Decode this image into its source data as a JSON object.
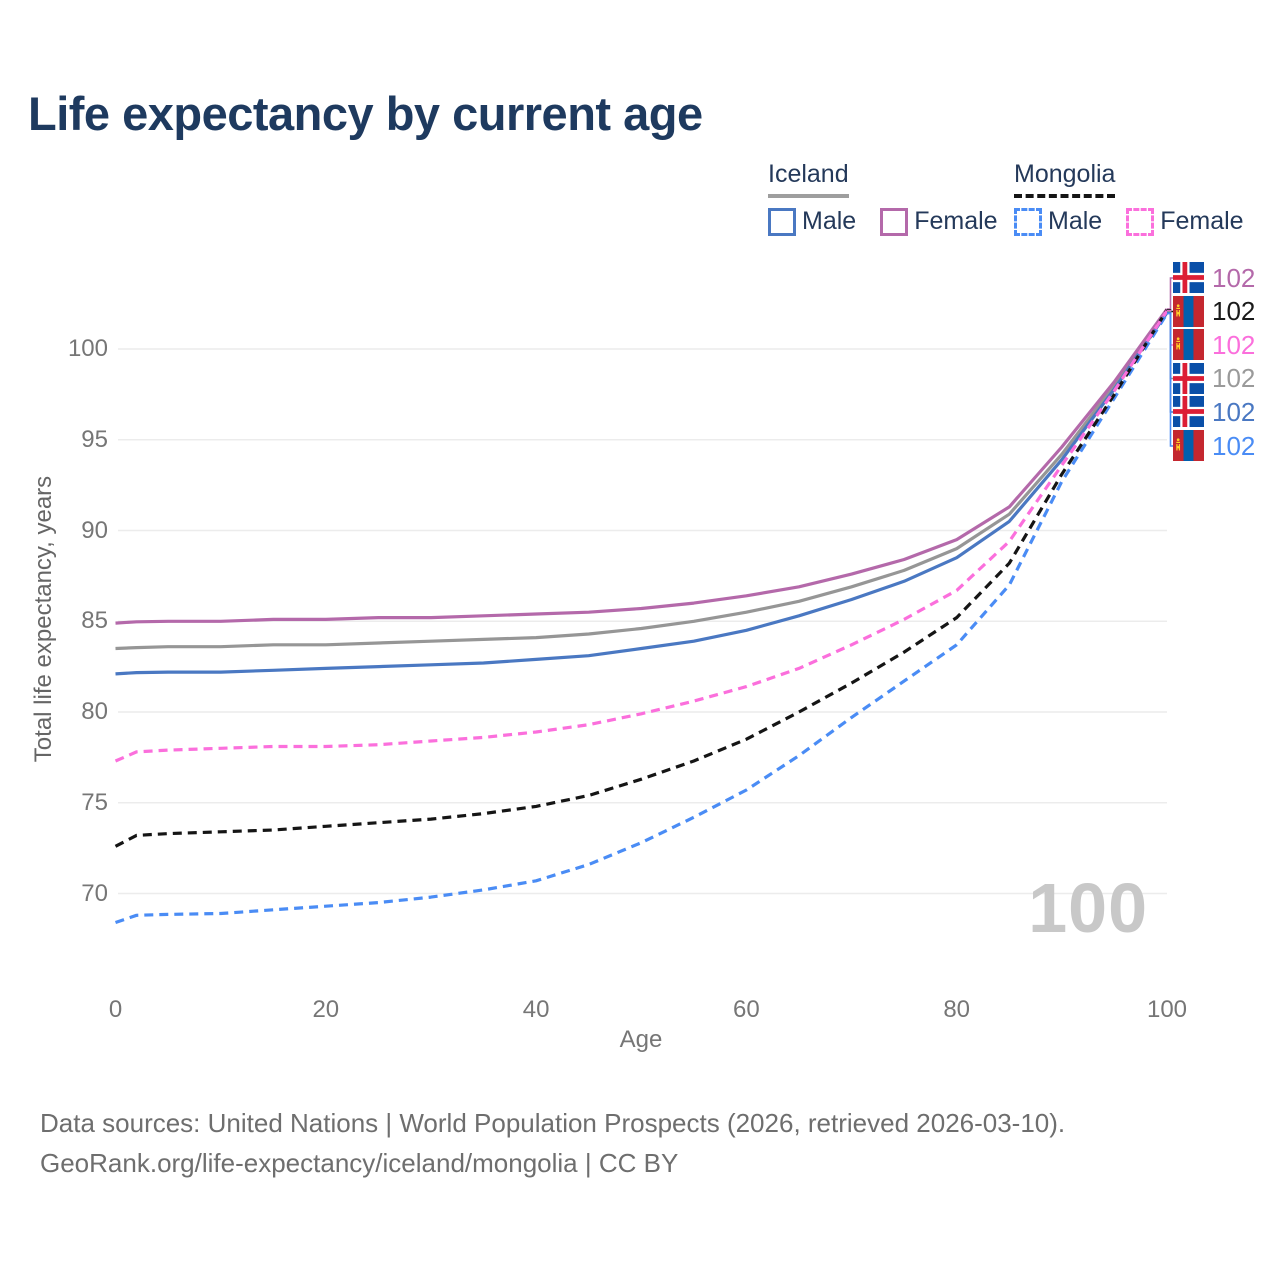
{
  "header": {
    "title": "Life expectancy by current age"
  },
  "legend": {
    "groups": [
      {
        "country": "Iceland",
        "line_style": "solid",
        "underline_color": "#9e9e9e",
        "items": [
          {
            "label": "Male",
            "color": "#4a78c2",
            "dash": false
          },
          {
            "label": "Female",
            "color": "#b469aa",
            "dash": false
          }
        ]
      },
      {
        "country": "Mongolia",
        "line_style": "dashed",
        "underline_color": "#151515",
        "items": [
          {
            "label": "Male",
            "color": "#4a8cf5",
            "dash": true
          },
          {
            "label": "Female",
            "color": "#fb6fdc",
            "dash": true
          }
        ]
      }
    ]
  },
  "chart_data": {
    "type": "line",
    "title": "Life expectancy by current age",
    "xlabel": "Age",
    "ylabel": "Total life expectancy, years",
    "xlim": [
      0,
      100
    ],
    "ylim": [
      66,
      104
    ],
    "xticks": [
      0,
      20,
      40,
      60,
      80,
      100
    ],
    "yticks": [
      100,
      95,
      90,
      85,
      80,
      75,
      70
    ],
    "grid": "horizontal",
    "legend_position": "top-right",
    "age_counter": "100",
    "x": [
      0,
      2,
      5,
      10,
      15,
      20,
      25,
      30,
      35,
      40,
      45,
      50,
      55,
      60,
      65,
      70,
      75,
      80,
      85,
      90,
      95,
      100
    ],
    "series": [
      {
        "name": "Iceland Female",
        "country": "Iceland",
        "sex": "Female",
        "color": "#b469aa",
        "dash": false,
        "end_label": "102",
        "values": [
          84.9,
          84.97,
          85.0,
          85.0,
          85.1,
          85.1,
          85.2,
          85.2,
          85.3,
          85.4,
          85.5,
          85.7,
          86.0,
          86.4,
          86.9,
          87.6,
          88.4,
          89.5,
          91.3,
          94.6,
          98.2,
          102.2
        ]
      },
      {
        "name": "Mongolia Both sexes",
        "country": "Mongolia",
        "sex": "Both",
        "color": "#151515",
        "dash": true,
        "end_label": "102",
        "values": [
          72.6,
          73.2,
          73.3,
          73.4,
          73.5,
          73.7,
          73.9,
          74.1,
          74.4,
          74.8,
          75.4,
          76.3,
          77.3,
          78.5,
          80.0,
          81.6,
          83.3,
          85.2,
          88.2,
          93.1,
          97.5,
          102.15
        ]
      },
      {
        "name": "Mongolia Female",
        "country": "Mongolia",
        "sex": "Female",
        "color": "#fb6fdc",
        "dash": true,
        "end_label": "102",
        "values": [
          77.3,
          77.8,
          77.9,
          78.0,
          78.1,
          78.1,
          78.2,
          78.4,
          78.6,
          78.9,
          79.3,
          79.9,
          80.6,
          81.4,
          82.4,
          83.7,
          85.1,
          86.7,
          89.4,
          93.6,
          97.7,
          102.1
        ]
      },
      {
        "name": "Iceland Both sexes",
        "country": "Iceland",
        "sex": "Both",
        "color": "#969696",
        "dash": false,
        "end_label": "102",
        "values": [
          83.5,
          83.55,
          83.6,
          83.6,
          83.7,
          83.7,
          83.8,
          83.9,
          84.0,
          84.1,
          84.3,
          84.6,
          85.0,
          85.5,
          86.1,
          86.9,
          87.8,
          89.0,
          90.9,
          94.2,
          98.0,
          102.05
        ]
      },
      {
        "name": "Iceland Male",
        "country": "Iceland",
        "sex": "Male",
        "color": "#4a78c2",
        "dash": false,
        "end_label": "102",
        "values": [
          82.1,
          82.17,
          82.2,
          82.2,
          82.3,
          82.4,
          82.5,
          82.6,
          82.7,
          82.9,
          83.1,
          83.5,
          83.9,
          84.5,
          85.3,
          86.2,
          87.2,
          88.5,
          90.5,
          93.9,
          97.8,
          102.0
        ]
      },
      {
        "name": "Mongolia Male",
        "country": "Mongolia",
        "sex": "Male",
        "color": "#4a8cf5",
        "dash": true,
        "end_label": "102",
        "values": [
          68.4,
          68.8,
          68.85,
          68.9,
          69.1,
          69.3,
          69.5,
          69.8,
          70.2,
          70.7,
          71.6,
          72.8,
          74.2,
          75.7,
          77.6,
          79.7,
          81.7,
          83.7,
          87.0,
          92.7,
          97.3,
          101.95
        ]
      }
    ],
    "end_labels": [
      {
        "flag": "iceland",
        "series": "Iceland Female",
        "value": "102",
        "color": "#b469aa"
      },
      {
        "flag": "mongolia",
        "series": "Mongolia Both sexes",
        "value": "102",
        "color": "#1a1a1a"
      },
      {
        "flag": "mongolia",
        "series": "Mongolia Female",
        "value": "102",
        "color": "#fb6fdc"
      },
      {
        "flag": "iceland",
        "series": "Iceland Both sexes",
        "value": "102",
        "color": "#9a9a9a"
      },
      {
        "flag": "iceland",
        "series": "Iceland Male",
        "value": "102",
        "color": "#4a78c2"
      },
      {
        "flag": "mongolia",
        "series": "Mongolia Male",
        "value": "102",
        "color": "#4a8cf5"
      }
    ]
  },
  "footer": {
    "line1": "Data sources: United Nations | World Population Prospects (2026, retrieved 2026-03-10).",
    "line2": "GeoRank.org/life-expectancy/iceland/mongolia | CC BY"
  },
  "colors": {
    "title": "#1e3a5f",
    "axis_text": "#767676",
    "gridline": "#ececec",
    "watermark": "#c8c8c8",
    "footer_text": "#6e6e6e"
  }
}
